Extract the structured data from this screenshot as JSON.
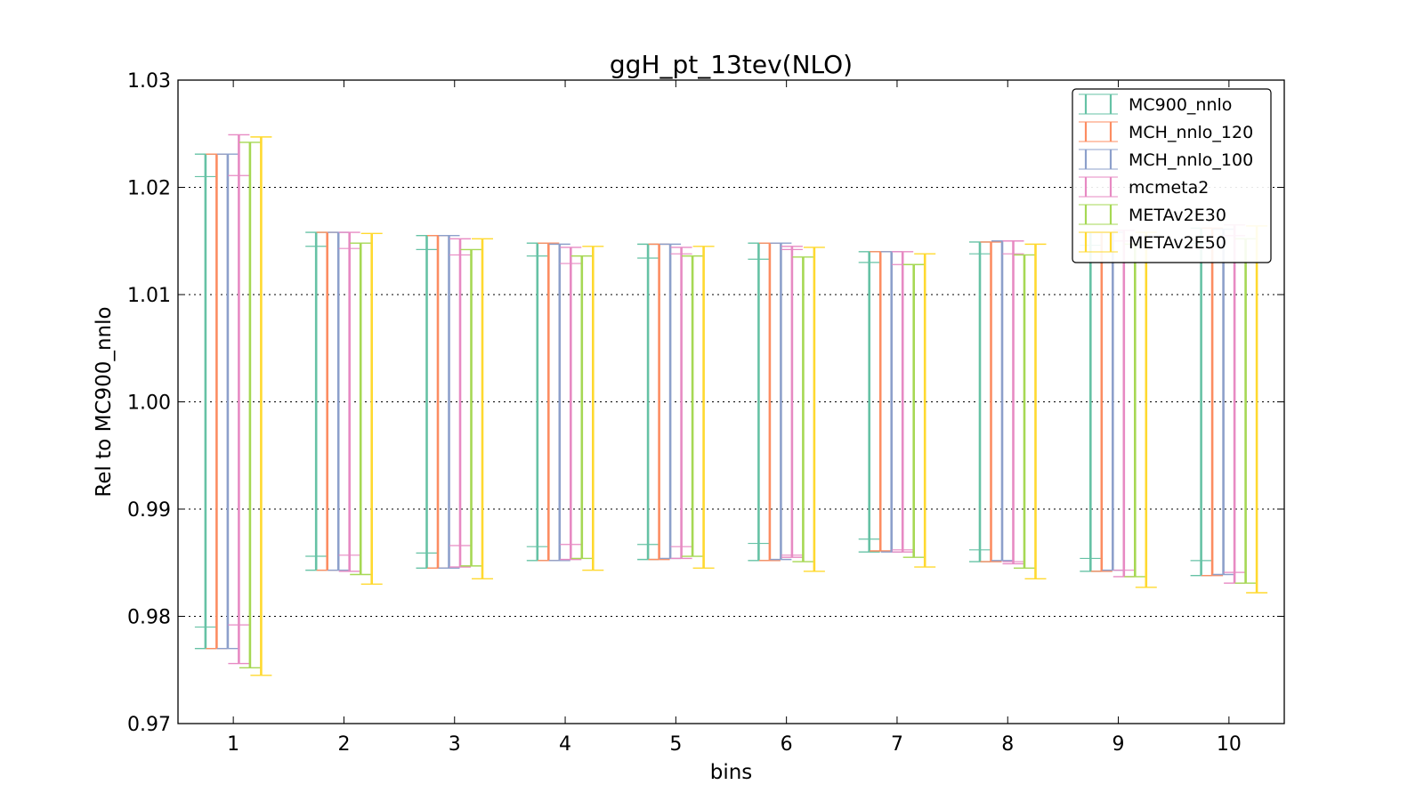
{
  "chart_data": {
    "type": "errorbar",
    "title": "ggH_pt_13tev(NLO)",
    "xlabel": "bins",
    "ylabel": "Rel to MC900_nnlo",
    "ylim": [
      0.97,
      1.03
    ],
    "yticks": [
      "0.97",
      "0.98",
      "0.99",
      "1.00",
      "1.01",
      "1.02",
      "1.03"
    ],
    "categories": [
      "1",
      "2",
      "3",
      "4",
      "5",
      "6",
      "7",
      "8",
      "9",
      "10"
    ],
    "grid": "horizontal-dotted",
    "legend_position": "top-right",
    "series": [
      {
        "name": "MC900_nnlo",
        "color": "#66c2a5",
        "outer_lo": [
          0.977,
          0.9843,
          0.9845,
          0.9852,
          0.9853,
          0.9852,
          0.986,
          0.9851,
          0.9842,
          0.9838
        ],
        "outer_hi": [
          1.0231,
          1.0158,
          1.0155,
          1.0148,
          1.0147,
          1.0148,
          1.014,
          1.0149,
          1.0158,
          1.0162
        ],
        "inner_lo": [
          0.979,
          0.9856,
          0.9859,
          0.9865,
          0.9867,
          0.9868,
          0.9872,
          0.9862,
          0.9854,
          0.9852
        ],
        "inner_hi": [
          1.021,
          1.0145,
          1.0142,
          1.0136,
          1.0134,
          1.0133,
          1.013,
          1.0138,
          1.0146,
          1.0148
        ]
      },
      {
        "name": "MCH_nnlo_120",
        "color": "#fc8d62",
        "outer_lo": [
          0.977,
          0.9843,
          0.9845,
          0.9852,
          0.9853,
          0.9852,
          0.9861,
          0.9851,
          0.9842,
          0.9838
        ],
        "outer_hi": [
          1.0231,
          1.0158,
          1.0155,
          1.0148,
          1.0147,
          1.0148,
          1.014,
          1.0149,
          1.0158,
          1.0162
        ],
        "inner_lo": [
          0.977,
          0.9843,
          0.9845,
          0.9852,
          0.9853,
          0.9852,
          0.9861,
          0.9851,
          0.9842,
          0.9838
        ],
        "inner_hi": [
          1.0231,
          1.0158,
          1.0155,
          1.0148,
          1.0147,
          1.0148,
          1.014,
          1.0149,
          1.0158,
          1.0162
        ]
      },
      {
        "name": "MCH_nnlo_100",
        "color": "#8da0cb",
        "outer_lo": [
          0.977,
          0.9843,
          0.9845,
          0.9852,
          0.9854,
          0.9853,
          0.986,
          0.9852,
          0.9843,
          0.9839
        ],
        "outer_hi": [
          1.0231,
          1.0158,
          1.0155,
          1.0147,
          1.0147,
          1.0148,
          1.014,
          1.015,
          1.0158,
          1.0161
        ],
        "inner_lo": [
          0.977,
          0.9843,
          0.9845,
          0.9852,
          0.9854,
          0.9853,
          0.986,
          0.9852,
          0.9843,
          0.9839
        ],
        "inner_hi": [
          1.0231,
          1.0158,
          1.0155,
          1.0147,
          1.0147,
          1.0148,
          1.014,
          1.015,
          1.0158,
          1.0161
        ]
      },
      {
        "name": "mcmeta2",
        "color": "#e78ac3",
        "outer_lo": [
          0.9756,
          0.9842,
          0.9846,
          0.9853,
          0.9854,
          0.9855,
          0.986,
          0.9849,
          0.9837,
          0.9831
        ],
        "outer_hi": [
          1.0249,
          1.0158,
          1.0152,
          1.0144,
          1.0144,
          1.0145,
          1.014,
          1.015,
          1.016,
          1.0165
        ],
        "inner_lo": [
          0.9792,
          0.9857,
          0.9866,
          0.9867,
          0.9865,
          0.9857,
          0.9862,
          0.9851,
          0.9843,
          0.9841
        ],
        "inner_hi": [
          1.0211,
          1.0143,
          1.0137,
          1.0129,
          1.0138,
          1.0142,
          1.0128,
          1.0138,
          1.015,
          1.0155
        ]
      },
      {
        "name": "METAv2E30",
        "color": "#a6d854",
        "outer_lo": [
          0.9752,
          0.9839,
          0.9847,
          0.9854,
          0.9856,
          0.9851,
          0.9855,
          0.9845,
          0.9837,
          0.9831
        ],
        "outer_hi": [
          1.0242,
          1.0148,
          1.0142,
          1.0136,
          1.0136,
          1.0135,
          1.0128,
          1.0137,
          1.0147,
          1.0152
        ],
        "inner_lo": [
          0.9752,
          0.9839,
          0.9847,
          0.9854,
          0.9856,
          0.9851,
          0.9855,
          0.9845,
          0.9837,
          0.9831
        ],
        "inner_hi": [
          1.0242,
          1.0148,
          1.0142,
          1.0136,
          1.0136,
          1.0135,
          1.0128,
          1.0137,
          1.0147,
          1.0152
        ]
      },
      {
        "name": "METAv2E50",
        "color": "#ffd92f",
        "outer_lo": [
          0.9745,
          0.983,
          0.9835,
          0.9843,
          0.9845,
          0.9842,
          0.9846,
          0.9835,
          0.9827,
          0.9822
        ],
        "outer_hi": [
          1.0247,
          1.0157,
          1.0152,
          1.0145,
          1.0145,
          1.0144,
          1.0138,
          1.0147,
          1.0158,
          1.0164
        ],
        "inner_lo": [
          0.9745,
          0.983,
          0.9835,
          0.9843,
          0.9845,
          0.9842,
          0.9846,
          0.9835,
          0.9827,
          0.9822
        ],
        "inner_hi": [
          1.0247,
          1.0157,
          1.0152,
          1.0145,
          1.0145,
          1.0144,
          1.0138,
          1.0147,
          1.0158,
          1.0164
        ]
      }
    ]
  }
}
